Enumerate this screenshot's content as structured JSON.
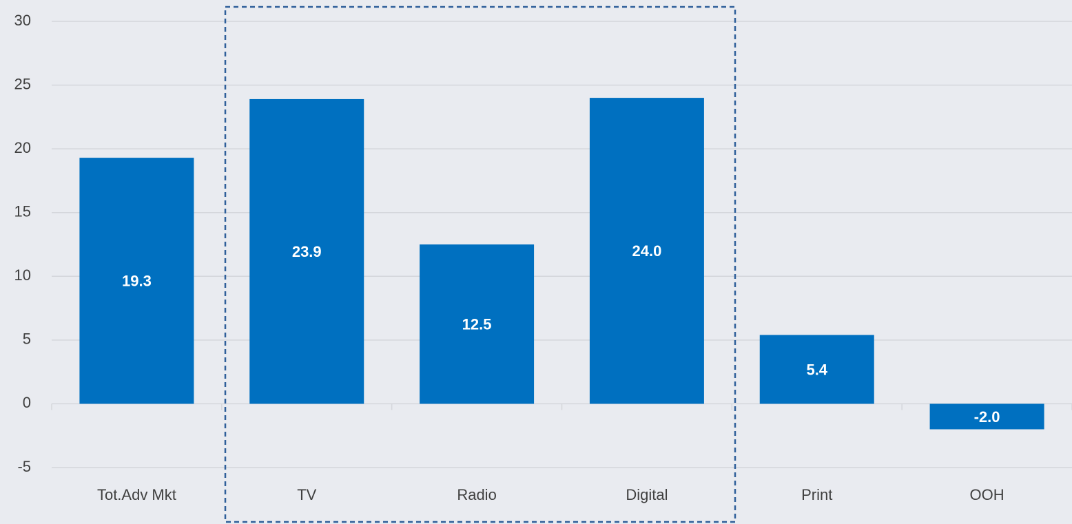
{
  "chart_data": {
    "type": "bar",
    "categories": [
      "Tot.Adv Mkt",
      "TV",
      "Radio",
      "Digital",
      "Print",
      "OOH"
    ],
    "values": [
      19.3,
      23.9,
      12.5,
      24.0,
      5.4,
      -2.0
    ],
    "value_labels": [
      "19.3",
      "23.9",
      "12.5",
      "24.0",
      "5.4",
      "-2.0"
    ],
    "color": "#0070c0",
    "ylim": [
      -5,
      30
    ],
    "yticks": [
      -5,
      0,
      5,
      10,
      15,
      20,
      25,
      30
    ],
    "grid": true
  }
}
